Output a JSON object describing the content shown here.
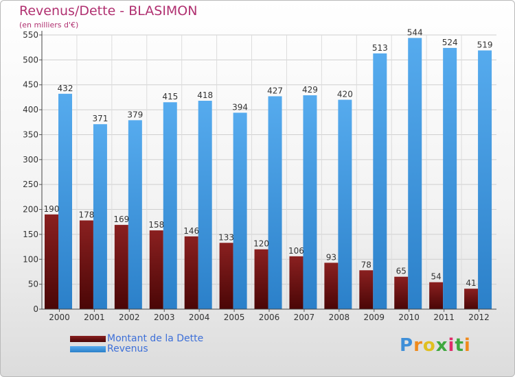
{
  "title": "Revenus/Dette - BLASIMON",
  "subtitle": "(en milliers d'€)",
  "logo": "Proxiti",
  "colors": {
    "dette": "#6b1515",
    "revenus": "#3f9be2",
    "title": "#b03070",
    "legend_text": "#3d6fd8"
  },
  "legend": [
    {
      "label": "Montant de la Dette",
      "color": "#6b1515"
    },
    {
      "label": "Revenus",
      "color": "#3f9be2"
    }
  ],
  "chart_data": {
    "type": "bar",
    "title": "Revenus/Dette - BLASIMON",
    "subtitle": "(en milliers d'€)",
    "categories": [
      "2000",
      "2001",
      "2002",
      "2003",
      "2004",
      "2005",
      "2006",
      "2007",
      "2008",
      "2009",
      "2010",
      "2011",
      "2012"
    ],
    "series": [
      {
        "name": "Montant de la Dette",
        "values": [
          190,
          178,
          169,
          158,
          146,
          133,
          120,
          106,
          93,
          78,
          65,
          54,
          41
        ]
      },
      {
        "name": "Revenus",
        "values": [
          432,
          371,
          379,
          415,
          418,
          394,
          427,
          429,
          420,
          513,
          544,
          524,
          519
        ]
      }
    ],
    "yticks": [
      "0",
      "50",
      "100",
      "150",
      "200",
      "250",
      "300",
      "350",
      "400",
      "450",
      "500",
      "550"
    ],
    "ylim": [
      0,
      550
    ],
    "grid": true,
    "legend_position": "bottom-left"
  }
}
